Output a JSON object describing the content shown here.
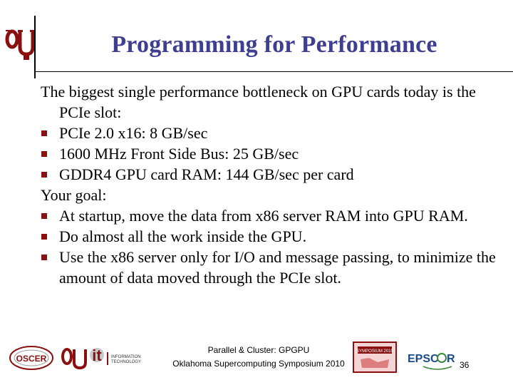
{
  "slide": {
    "title": "Programming for Performance",
    "intro": "The biggest single performance bottleneck on GPU cards today is the PCIe slot:",
    "bullets_a": [
      "PCIe 2.0 x16: 8 GB/sec",
      "1600 MHz Front Side Bus: 25 GB/sec",
      "GDDR4 GPU card RAM: 144 GB/sec per card"
    ],
    "goal": "Your goal:",
    "bullets_b": [
      "At startup, move the data from x86 server RAM into GPU RAM.",
      "Do almost all the work inside the GPU.",
      "Use the x86 server only for I/O and message passing, to minimize the amount of data moved through the PCIe slot."
    ]
  },
  "footer": {
    "line1": "Parallel & Cluster: GPGPU",
    "line2": "Oklahoma Supercomputing Symposium 2010",
    "page_number": "36",
    "logo_oscer": "OSCER",
    "logo_it": "it",
    "logo_it_sub": "INFORMATION TECHNOLOGY",
    "logo_symposium": "SYMPOSIUM 2010",
    "logo_epscor": "EPSCoR"
  },
  "colors": {
    "title": "#3e3f8f",
    "bullet": "#8a0f0f",
    "ou_crimson": "#8a0f0f"
  }
}
